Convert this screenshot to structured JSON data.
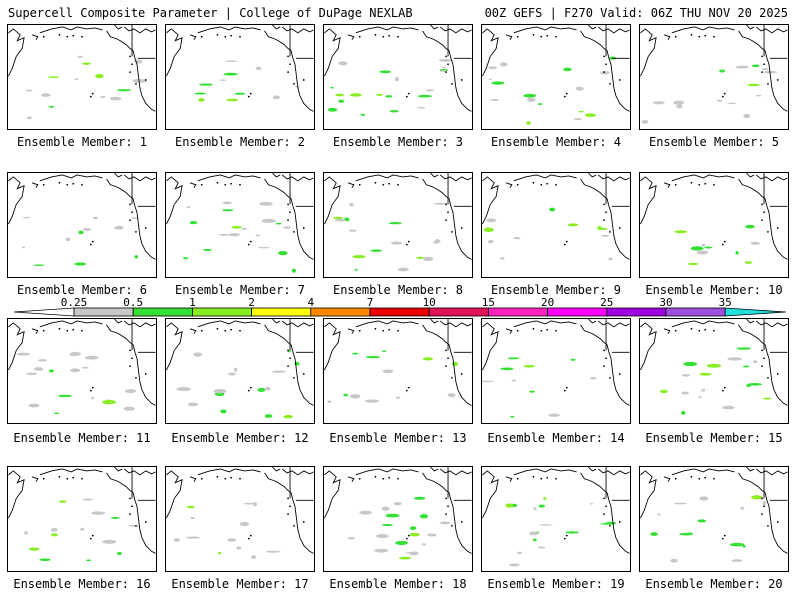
{
  "header": {
    "left": "Supercell Composite Parameter | College of DuPage NEXLAB",
    "right": "00Z GEFS | F270 Valid: 06Z THU NOV 20 2025"
  },
  "colorbar": {
    "labels": [
      "0.25",
      "0.5",
      "1",
      "2",
      "4",
      "7",
      "10",
      "15",
      "20",
      "25",
      "30",
      "35"
    ],
    "colors": [
      "#c8c8c8",
      "#33e033",
      "#88ee22",
      "#ffff00",
      "#ff8800",
      "#ee0000",
      "#e0105a",
      "#ff20c0",
      "#ff00ff",
      "#a000e0",
      "#a050e0",
      "#20e0e0"
    ]
  },
  "members": [
    {
      "caption": "Ensemble Member: 1"
    },
    {
      "caption": "Ensemble Member: 2"
    },
    {
      "caption": "Ensemble Member: 3"
    },
    {
      "caption": "Ensemble Member: 4"
    },
    {
      "caption": "Ensemble Member: 5"
    },
    {
      "caption": "Ensemble Member: 6"
    },
    {
      "caption": "Ensemble Member: 7"
    },
    {
      "caption": "Ensemble Member: 8"
    },
    {
      "caption": "Ensemble Member: 9"
    },
    {
      "caption": "Ensemble Member: 10"
    },
    {
      "caption": "Ensemble Member: 11"
    },
    {
      "caption": "Ensemble Member: 12"
    },
    {
      "caption": "Ensemble Member: 13"
    },
    {
      "caption": "Ensemble Member: 14"
    },
    {
      "caption": "Ensemble Member: 15"
    },
    {
      "caption": "Ensemble Member: 16"
    },
    {
      "caption": "Ensemble Member: 17"
    },
    {
      "caption": "Ensemble Member: 18"
    },
    {
      "caption": "Ensemble Member: 19"
    },
    {
      "caption": "Ensemble Member: 20"
    }
  ]
}
